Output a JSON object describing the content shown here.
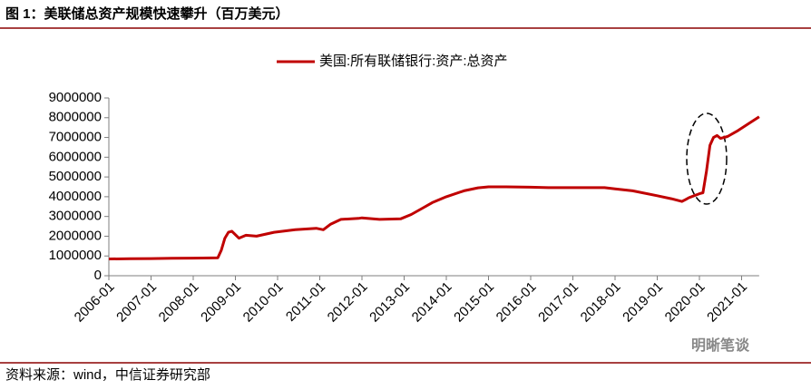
{
  "chart_data": {
    "type": "line",
    "title": "图 1：美联储总资产规模快速攀升（百万美元）",
    "source": "资料来源：wind，中信证券研究部",
    "watermark": "明晰笔谈",
    "x": [
      "2006-01",
      "2006-07",
      "2007-01",
      "2007-07",
      "2008-01",
      "2008-06",
      "2008-08",
      "2008-09",
      "2008-10",
      "2008-11",
      "2008-12",
      "2009-02",
      "2009-04",
      "2009-07",
      "2009-12",
      "2010-06",
      "2010-12",
      "2011-02",
      "2011-04",
      "2011-07",
      "2011-12",
      "2012-01",
      "2012-06",
      "2012-12",
      "2013-03",
      "2013-06",
      "2013-09",
      "2014-01",
      "2014-06",
      "2014-10",
      "2015-01",
      "2015-06",
      "2016-01",
      "2016-06",
      "2017-01",
      "2017-06",
      "2017-10",
      "2018-01",
      "2018-06",
      "2019-01",
      "2019-05",
      "2019-08",
      "2019-09",
      "2019-10",
      "2020-01",
      "2020-02",
      "2020-03",
      "2020-04",
      "2020-05",
      "2020-06",
      "2020-07",
      "2020-09",
      "2020-12",
      "2021-03",
      "2021-06"
    ],
    "series": [
      {
        "name": "美国:所有联储银行:资产:总资产",
        "color": "#c00000",
        "values": [
          850000,
          860000,
          870000,
          880000,
          890000,
          900000,
          905000,
          1300000,
          1900000,
          2200000,
          2250000,
          1900000,
          2050000,
          2000000,
          2200000,
          2330000,
          2400000,
          2330000,
          2600000,
          2850000,
          2900000,
          2930000,
          2850000,
          2880000,
          3100000,
          3400000,
          3700000,
          4000000,
          4300000,
          4450000,
          4500000,
          4500000,
          4480000,
          4460000,
          4460000,
          4460000,
          4460000,
          4400000,
          4300000,
          4050000,
          3900000,
          3760000,
          3850000,
          3950000,
          4150000,
          4200000,
          5300000,
          6600000,
          7000000,
          7100000,
          6950000,
          7050000,
          7350000,
          7700000,
          8050000
        ]
      }
    ],
    "xlim": [
      "2006-01",
      "2021-06"
    ],
    "xticks": [
      "2006-01",
      "2007-01",
      "2008-01",
      "2009-01",
      "2010-01",
      "2011-01",
      "2012-01",
      "2013-01",
      "2014-01",
      "2015-01",
      "2016-01",
      "2017-01",
      "2018-01",
      "2019-01",
      "2020-01",
      "2021-01"
    ],
    "ylim": [
      0,
      9000000
    ],
    "yticks": [
      0,
      1000000,
      2000000,
      3000000,
      4000000,
      5000000,
      6000000,
      7000000,
      8000000,
      9000000
    ],
    "grid": false,
    "legend": "top"
  }
}
